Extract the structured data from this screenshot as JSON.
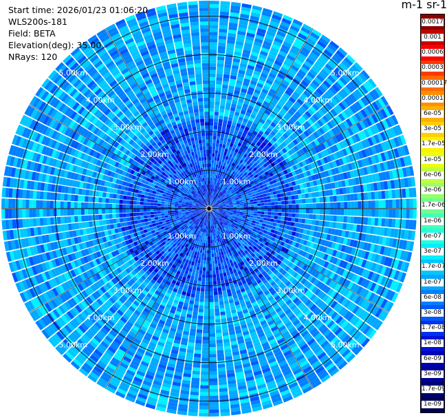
{
  "header": {
    "start_time": "Start time: 2026/01/23 01:06:20",
    "instrument": "WLS200s-181",
    "field": "Field: BETA",
    "elevation": "Elevation(deg): 35.00",
    "nrays": "NRays: 120"
  },
  "colorbar": {
    "title": "m-1 sr-1",
    "labels": [
      "0.0017",
      "0.001",
      "0.0006",
      "0.0003",
      "0.00017",
      "0.0001",
      "6e-05",
      "3e-05",
      "1.7e-05",
      "1e-05",
      "6e-06",
      "3e-06",
      "1.7e-06",
      "1e-06",
      "6e-07",
      "3e-07",
      "1.7e-07",
      "1e-07",
      "6e-08",
      "3e-08",
      "1.7e-08",
      "1e-08",
      "6e-09",
      "3e-09",
      "1.7e-09",
      "1e-09"
    ],
    "colors": [
      "#8b0000",
      "#c40000",
      "#ff0000",
      "#ff3a00",
      "#ff6a00",
      "#ff8f00",
      "#ffb000",
      "#ffd000",
      "#fff000",
      "#e8ff10",
      "#c0ff40",
      "#98ff68",
      "#70ff90",
      "#48ffb8",
      "#20ffe0",
      "#00f0ff",
      "#00c8ff",
      "#00a8ff",
      "#0080ff",
      "#0058ff",
      "#0030f0",
      "#0010d8",
      "#0000b8",
      "#000098",
      "#000070",
      "#000050"
    ]
  },
  "chart_data": {
    "type": "ppi",
    "field": "BETA",
    "elevation_deg": 35.0,
    "nrays": 120,
    "range_rings_km": [
      1,
      2,
      3,
      4,
      5
    ],
    "ring_labels": [
      "1.00km",
      "2.00km",
      "3.00km",
      "4.00km",
      "5.00km"
    ],
    "max_range_km": 5.4,
    "value_range": [
      1e-09,
      0.0017
    ],
    "pattern": {
      "inner_band_km": [
        1.0,
        2.3
      ],
      "inner_band_value": 3e-08,
      "outer_region_value": 1e-07,
      "near_center_value": 2e-08
    }
  }
}
